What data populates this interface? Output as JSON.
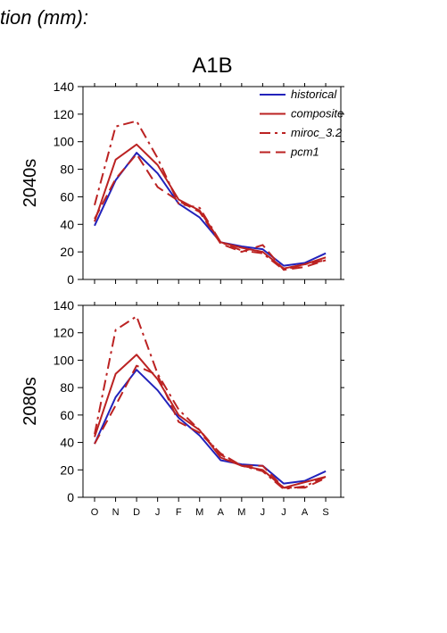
{
  "page_title": "tion (mm):",
  "scenario": "A1B",
  "chart_data": [
    {
      "type": "line",
      "panel_label": "2040s",
      "categories": [
        "O",
        "N",
        "D",
        "J",
        "F",
        "M",
        "A",
        "M",
        "J",
        "J",
        "A",
        "S"
      ],
      "ylim": [
        0,
        140
      ],
      "yticks": [
        0,
        20,
        40,
        60,
        80,
        100,
        120,
        140
      ],
      "grid": false,
      "legend_position": "top-right",
      "series": [
        {
          "name": "historical",
          "color": "#2222bb",
          "dash": "solid",
          "values": [
            39,
            72,
            92,
            77,
            55,
            45,
            27,
            24,
            22,
            10,
            12,
            19
          ]
        },
        {
          "name": "composite",
          "color": "#bb2222",
          "dash": "solid",
          "values": [
            42,
            87,
            98,
            83,
            58,
            50,
            27,
            23,
            20,
            8,
            11,
            16
          ]
        },
        {
          "name": "miroc_3.2",
          "color": "#bb2222",
          "dash": "dashdot",
          "values": [
            54,
            111,
            115,
            88,
            55,
            52,
            27,
            21,
            19,
            7,
            11,
            14
          ]
        },
        {
          "name": "pcm1",
          "color": "#bb2222",
          "dash": "dash",
          "values": [
            44,
            73,
            91,
            67,
            57,
            49,
            26,
            20,
            25,
            7,
            9,
            14
          ]
        }
      ]
    },
    {
      "type": "line",
      "panel_label": "2080s",
      "categories": [
        "O",
        "N",
        "D",
        "J",
        "F",
        "M",
        "A",
        "M",
        "J",
        "J",
        "A",
        "S"
      ],
      "ylim": [
        0,
        140
      ],
      "yticks": [
        0,
        20,
        40,
        60,
        80,
        100,
        120,
        140
      ],
      "grid": false,
      "series": [
        {
          "name": "historical",
          "color": "#2222bb",
          "dash": "solid",
          "values": [
            39,
            73,
            93,
            78,
            58,
            45,
            27,
            24,
            23,
            10,
            12,
            19
          ]
        },
        {
          "name": "composite",
          "color": "#bb2222",
          "dash": "solid",
          "values": [
            44,
            90,
            104,
            86,
            60,
            49,
            29,
            23,
            20,
            7,
            11,
            15
          ]
        },
        {
          "name": "miroc_3.2",
          "color": "#bb2222",
          "dash": "dashdot",
          "values": [
            46,
            122,
            132,
            90,
            64,
            49,
            31,
            23,
            19,
            6,
            8,
            15
          ]
        },
        {
          "name": "pcm1",
          "color": "#bb2222",
          "dash": "dash",
          "values": [
            39,
            67,
            96,
            89,
            55,
            47,
            32,
            23,
            23,
            7,
            7,
            14
          ]
        }
      ]
    }
  ]
}
